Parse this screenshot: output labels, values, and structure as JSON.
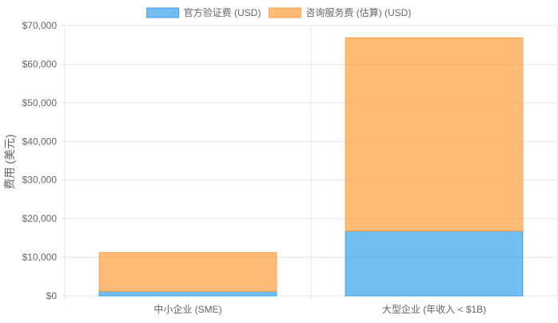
{
  "chart_data": {
    "type": "bar",
    "stacked": true,
    "categories": [
      "中小企业 (SME)",
      "大型企业 (年收入 < $1B)"
    ],
    "series": [
      {
        "name": "官方验证费 (USD)",
        "values": [
          1200,
          16800
        ],
        "color": "#36A2EB",
        "fill": "rgba(54,162,235,0.7)"
      },
      {
        "name": "咨询服务费 (估算) (USD)",
        "values": [
          10000,
          50000
        ],
        "color": "#FF9F40",
        "fill": "rgba(255,159,64,0.7)"
      }
    ],
    "ylabel": "费用 (美元)",
    "xlabel": "",
    "ylim": [
      0,
      70000
    ],
    "y_ticks": [
      "$0",
      "$10,000",
      "$20,000",
      "$30,000",
      "$40,000",
      "$50,000",
      "$60,000",
      "$70,000"
    ],
    "grid": true,
    "legend_position": "top"
  }
}
